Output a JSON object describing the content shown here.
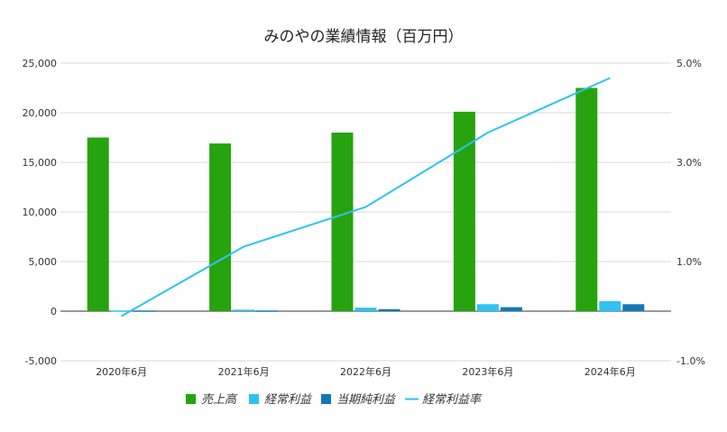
{
  "chart_data": {
    "type": "bar",
    "title": "みのやの業績情報（百万円）",
    "categories": [
      "2020年6月",
      "2021年6月",
      "2022年6月",
      "2023年6月",
      "2024年6月"
    ],
    "series": [
      {
        "name": "売上高",
        "kind": "bar",
        "axis": "left",
        "color": "#26a30e",
        "values": [
          17500,
          16900,
          18000,
          20100,
          22500
        ]
      },
      {
        "name": "経常利益",
        "kind": "bar",
        "axis": "left",
        "color": "#2ec2f3",
        "values": [
          -50,
          150,
          350,
          700,
          1000
        ]
      },
      {
        "name": "当期純利益",
        "kind": "bar",
        "axis": "left",
        "color": "#1278b5",
        "values": [
          -30,
          100,
          200,
          400,
          700
        ]
      },
      {
        "name": "経常利益率",
        "kind": "line",
        "axis": "right",
        "color": "#2ec2f3",
        "values": [
          -0.1,
          1.3,
          2.1,
          3.6,
          4.7
        ]
      }
    ],
    "y_left": {
      "min": -5000,
      "max": 25000,
      "ticks": [
        "-5,000",
        "0",
        "5,000",
        "10,000",
        "15,000",
        "20,000",
        "25,000"
      ],
      "tick_values": [
        -5000,
        0,
        5000,
        10000,
        15000,
        20000,
        25000
      ]
    },
    "y_right": {
      "min": -1.0,
      "max": 5.0,
      "ticks": [
        "-1.0%",
        "1.0%",
        "3.0%",
        "5.0%"
      ],
      "tick_values": [
        -1.0,
        1.0,
        3.0,
        5.0
      ]
    },
    "grid": true,
    "legend": "bottom"
  }
}
